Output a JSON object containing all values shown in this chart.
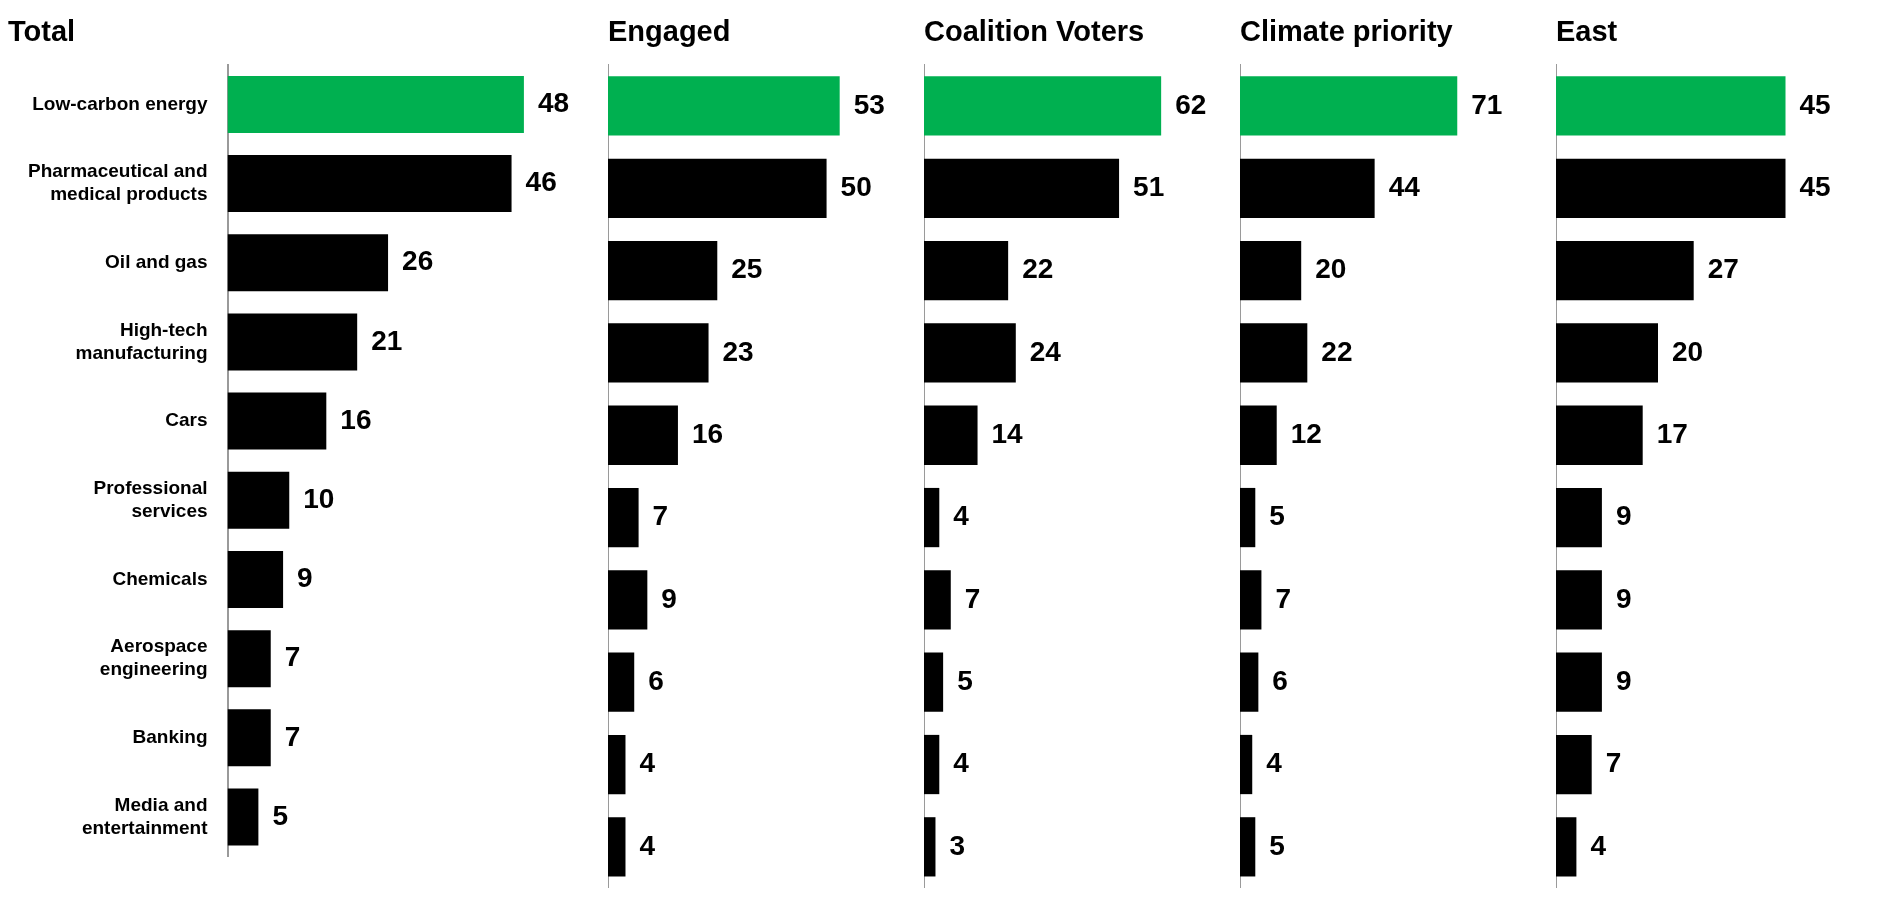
{
  "chart_data": [
    {
      "type": "bar",
      "orientation": "horizontal",
      "title": "Total",
      "categories": [
        "Low-carbon energy",
        "Pharmaceutical and medical products",
        "Oil and gas",
        "High-tech manufacturing",
        "Cars",
        "Professional services",
        "Chemicals",
        "Aerospace engineering",
        "Banking",
        "Media and entertainment"
      ],
      "values": [
        48,
        46,
        26,
        21,
        16,
        10,
        9,
        7,
        7,
        5
      ],
      "colors": [
        "#00b050",
        "#000000",
        "#000000",
        "#000000",
        "#000000",
        "#000000",
        "#000000",
        "#000000",
        "#000000",
        "#000000"
      ],
      "data_labels": true,
      "tick_labels": "y"
    },
    {
      "type": "bar",
      "orientation": "horizontal",
      "title": "Engaged",
      "categories": [
        null,
        null,
        null,
        null,
        null,
        null,
        null,
        null,
        null,
        null
      ],
      "values": [
        53,
        50,
        25,
        23,
        16,
        7,
        9,
        6,
        4,
        4
      ],
      "colors": [
        "#00b050",
        "#000000",
        "#000000",
        "#000000",
        "#000000",
        "#000000",
        "#000000",
        "#000000",
        "#000000",
        "#000000"
      ],
      "data_labels": true,
      "tick_labels": false
    },
    {
      "type": "bar",
      "orientation": "horizontal",
      "title": "Coalition Voters",
      "categories": [
        null,
        null,
        null,
        null,
        null,
        null,
        null,
        null,
        null,
        null
      ],
      "values": [
        62,
        51,
        22,
        24,
        14,
        4,
        7,
        5,
        4,
        3
      ],
      "colors": [
        "#00b050",
        "#000000",
        "#000000",
        "#000000",
        "#000000",
        "#000000",
        "#000000",
        "#000000",
        "#000000",
        "#000000"
      ],
      "data_labels": true,
      "tick_labels": false
    },
    {
      "type": "bar",
      "orientation": "horizontal",
      "title": "Climate priority",
      "categories": [
        null,
        null,
        null,
        null,
        null,
        null,
        null,
        null,
        null,
        null
      ],
      "values": [
        71,
        44,
        20,
        22,
        12,
        5,
        7,
        6,
        4,
        5
      ],
      "colors": [
        "#00b050",
        "#000000",
        "#000000",
        "#000000",
        "#000000",
        "#000000",
        "#000000",
        "#000000",
        "#000000",
        "#000000"
      ],
      "data_labels": true,
      "tick_labels": false
    },
    {
      "type": "bar",
      "orientation": "horizontal",
      "title": "East",
      "categories": [
        null,
        null,
        null,
        null,
        null,
        null,
        null,
        null,
        null,
        null
      ],
      "values": [
        45,
        45,
        27,
        20,
        17,
        9,
        9,
        9,
        7,
        4
      ],
      "colors": [
        "#00b050",
        "#000000",
        "#000000",
        "#000000",
        "#000000",
        "#000000",
        "#000000",
        "#000000",
        "#000000",
        "#000000"
      ],
      "data_labels": true,
      "tick_labels": false
    }
  ]
}
